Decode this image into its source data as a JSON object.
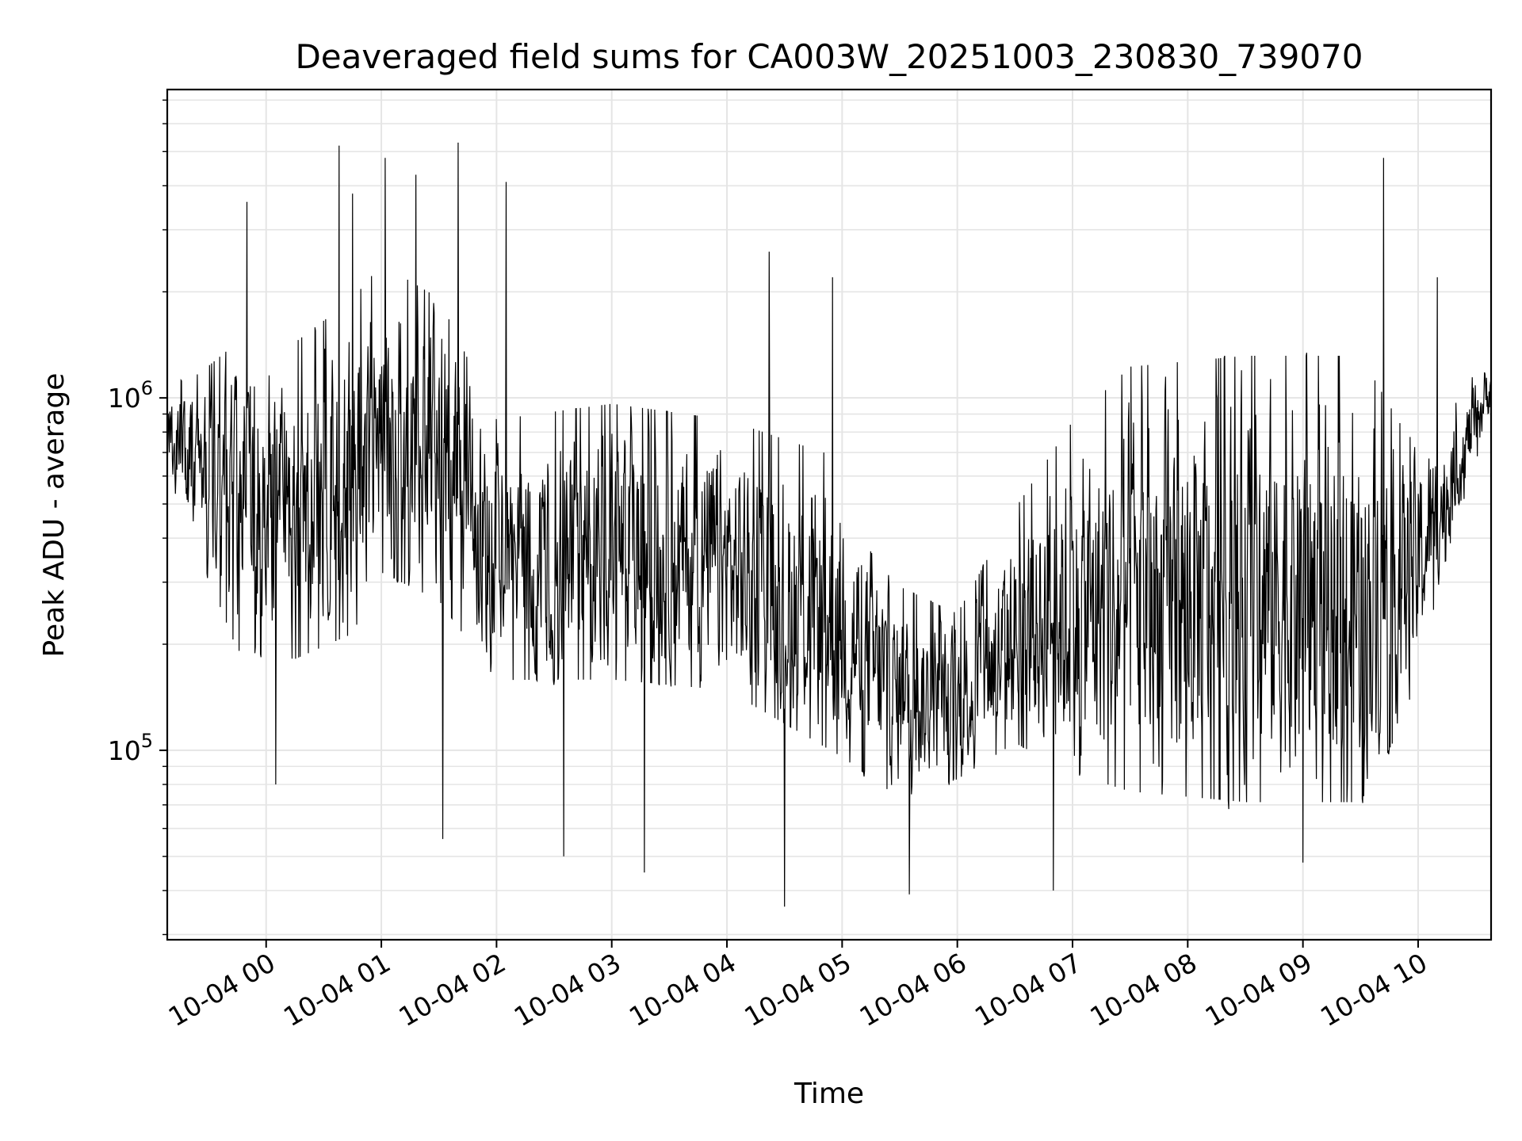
{
  "chart_data": {
    "type": "line",
    "title": "Deaveraged field sums for CA003W_20251003_230830_739070",
    "xlabel": "Time",
    "ylabel": "Peak ADU - average",
    "y_scale": "log",
    "ylim": [
      29000,
      7500000
    ],
    "xlim": [
      "2025-10-03 23:08:30",
      "2025-10-04 10:38:00"
    ],
    "grid": true,
    "line_color": "#000000",
    "grid_color": "#e5e5e5",
    "x_ticks": [
      {
        "value": "2025-10-04 00:00",
        "label": "10-04 00"
      },
      {
        "value": "2025-10-04 01:00",
        "label": "10-04 01"
      },
      {
        "value": "2025-10-04 02:00",
        "label": "10-04 02"
      },
      {
        "value": "2025-10-04 03:00",
        "label": "10-04 03"
      },
      {
        "value": "2025-10-04 04:00",
        "label": "10-04 04"
      },
      {
        "value": "2025-10-04 05:00",
        "label": "10-04 05"
      },
      {
        "value": "2025-10-04 06:00",
        "label": "10-04 06"
      },
      {
        "value": "2025-10-04 07:00",
        "label": "10-04 07"
      },
      {
        "value": "2025-10-04 08:00",
        "label": "10-04 08"
      },
      {
        "value": "2025-10-04 09:00",
        "label": "10-04 09"
      },
      {
        "value": "2025-10-04 10:00",
        "label": "10-04 10"
      }
    ],
    "y_ticks": [
      {
        "value": 100000,
        "base": "10",
        "exp": "5"
      },
      {
        "value": 1000000,
        "base": "10",
        "exp": "6"
      }
    ],
    "series": [
      {
        "style": "noisy line",
        "envelope": [
          {
            "x": "2025-10-03 23:08:30",
            "low": 600000,
            "high": 1100000
          },
          {
            "x": "2025-10-03 23:25:00",
            "low": 350000,
            "high": 1200000
          },
          {
            "x": "2025-10-03 23:45:00",
            "low": 180000,
            "high": 1500000
          },
          {
            "x": "2025-10-04 00:15:00",
            "low": 170000,
            "high": 1500000
          },
          {
            "x": "2025-10-04 00:45:00",
            "low": 200000,
            "high": 2000000
          },
          {
            "x": "2025-10-04 01:00:00",
            "low": 300000,
            "high": 2500000
          },
          {
            "x": "2025-10-04 01:30:00",
            "low": 250000,
            "high": 2000000
          },
          {
            "x": "2025-10-04 02:00:00",
            "low": 150000,
            "high": 900000
          },
          {
            "x": "2025-10-04 03:00:00",
            "low": 150000,
            "high": 1000000
          },
          {
            "x": "2025-10-04 04:00:00",
            "low": 140000,
            "high": 900000
          },
          {
            "x": "2025-10-04 05:00:00",
            "low": 90000,
            "high": 700000
          },
          {
            "x": "2025-10-04 05:30:00",
            "low": 70000,
            "high": 300000
          },
          {
            "x": "2025-10-04 06:00:00",
            "low": 80000,
            "high": 250000
          },
          {
            "x": "2025-10-04 06:30:00",
            "low": 100000,
            "high": 500000
          },
          {
            "x": "2025-10-04 07:00:00",
            "low": 80000,
            "high": 900000
          },
          {
            "x": "2025-10-04 07:30:00",
            "low": 70000,
            "high": 1300000
          },
          {
            "x": "2025-10-04 08:30:00",
            "low": 65000,
            "high": 1400000
          },
          {
            "x": "2025-10-04 09:30:00",
            "low": 65000,
            "high": 1400000
          },
          {
            "x": "2025-10-04 09:55:00",
            "low": 120000,
            "high": 800000
          },
          {
            "x": "2025-10-04 10:15:00",
            "low": 350000,
            "high": 900000
          },
          {
            "x": "2025-10-04 10:38:00",
            "low": 900000,
            "high": 1400000
          }
        ],
        "spikes": [
          {
            "x": "2025-10-03 23:50:00",
            "y": 3600000
          },
          {
            "x": "2025-10-04 00:38:00",
            "y": 5200000
          },
          {
            "x": "2025-10-04 00:45:00",
            "y": 3800000
          },
          {
            "x": "2025-10-04 01:02:00",
            "y": 4800000
          },
          {
            "x": "2025-10-04 01:18:00",
            "y": 4300000
          },
          {
            "x": "2025-10-04 01:40:00",
            "y": 5300000
          },
          {
            "x": "2025-10-04 02:05:00",
            "y": 4100000
          },
          {
            "x": "2025-10-04 04:22:00",
            "y": 2600000
          },
          {
            "x": "2025-10-04 04:55:00",
            "y": 2200000
          },
          {
            "x": "2025-10-04 09:42:00",
            "y": 4800000
          },
          {
            "x": "2025-10-04 10:10:00",
            "y": 2200000
          },
          {
            "x": "2025-10-04 00:05:00",
            "y": 80000
          },
          {
            "x": "2025-10-04 01:32:00",
            "y": 56000
          },
          {
            "x": "2025-10-04 02:35:00",
            "y": 50000
          },
          {
            "x": "2025-10-04 03:17:00",
            "y": 45000
          },
          {
            "x": "2025-10-04 04:30:00",
            "y": 36000
          },
          {
            "x": "2025-10-04 05:35:00",
            "y": 39000
          },
          {
            "x": "2025-10-04 06:50:00",
            "y": 40000
          },
          {
            "x": "2025-10-04 09:00:00",
            "y": 48000
          }
        ]
      }
    ]
  }
}
